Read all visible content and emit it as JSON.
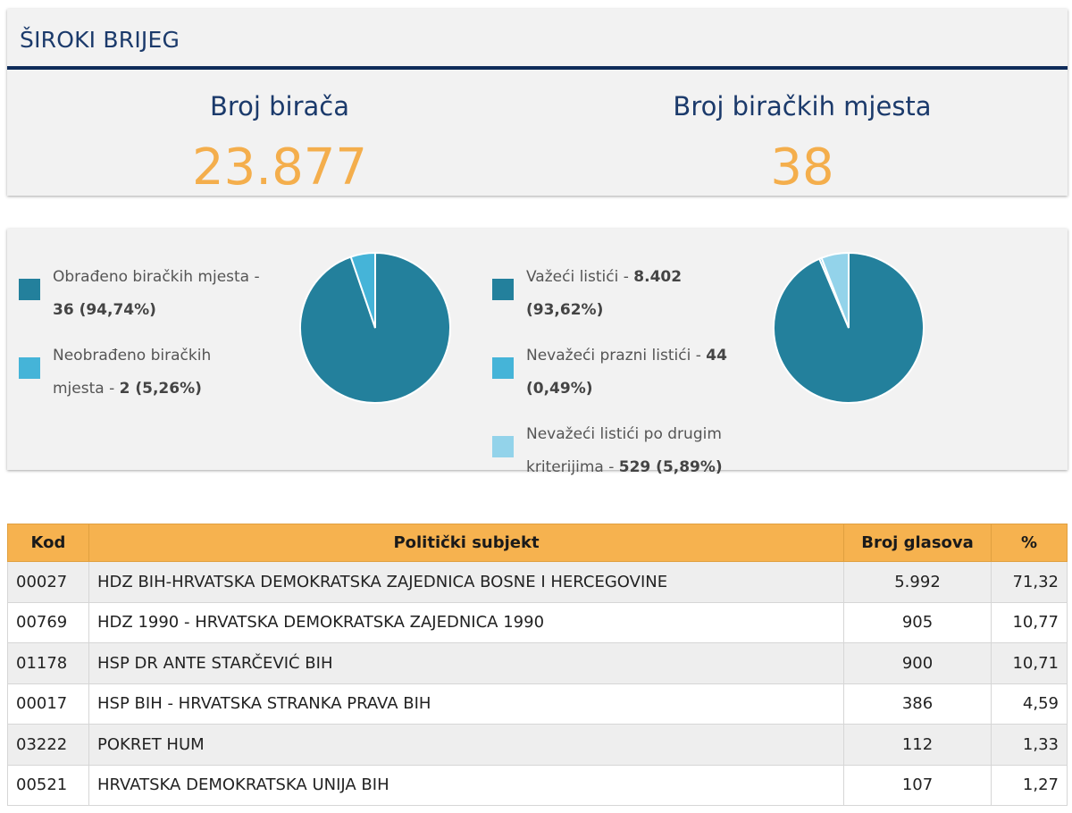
{
  "header": {
    "title": "ŠIROKI BRIJEG",
    "voters_label": "Broj birača",
    "voters_value": "23.877",
    "stations_label": "Broj biračkih mjesta",
    "stations_value": "38"
  },
  "colors": {
    "dark_slice": "#23809c",
    "mid_slice": "#45b4d8",
    "light_slice": "#93d3ea",
    "accent_orange": "#f6b24f",
    "navy": "#0f2c5a"
  },
  "pie_left": {
    "legend": [
      {
        "text": "Obrađeno biračkih mjesta - ",
        "value": "36 (94,74%)"
      },
      {
        "text": "Neobrađeno biračkih mjesta - ",
        "value": "2 (5,26%)"
      }
    ]
  },
  "pie_right": {
    "legend": [
      {
        "text": "Važeći listići - ",
        "value": "8.402 (93,62%)"
      },
      {
        "text": "Nevažeći prazni listići - ",
        "value": "44 (0,49%)"
      },
      {
        "text": "Nevažeći listići po drugim kriterijima - ",
        "value": "529 (5,89%)"
      }
    ]
  },
  "chart_data": [
    {
      "type": "pie",
      "categories": [
        "Obrađeno biračkih mjesta",
        "Neobrađeno biračkih mjesta"
      ],
      "values": [
        36,
        2
      ],
      "percent": [
        94.74,
        5.26
      ]
    },
    {
      "type": "pie",
      "categories": [
        "Važeći listići",
        "Nevažeći prazni listići",
        "Nevažeći listići po drugim kriterijima"
      ],
      "values": [
        8402,
        44,
        529
      ],
      "percent": [
        93.62,
        0.49,
        5.89
      ]
    },
    {
      "type": "table",
      "columns": [
        "Kod",
        "Politički subjekt",
        "Broj glasova",
        "%"
      ],
      "rows": [
        [
          "00027",
          "HDZ BIH-HRVATSKA DEMOKRATSKA ZAJEDNICA BOSNE I HERCEGOVINE",
          "5.992",
          "71,32"
        ],
        [
          "00769",
          "HDZ 1990 - HRVATSKA DEMOKRATSKA ZAJEDNICA 1990",
          "905",
          "10,77"
        ],
        [
          "01178",
          "HSP DR ANTE STARČEVIĆ BIH",
          "900",
          "10,71"
        ],
        [
          "00017",
          "HSP BIH - HRVATSKA STRANKA PRAVA BIH",
          "386",
          "4,59"
        ],
        [
          "03222",
          "POKRET HUM",
          "112",
          "1,33"
        ],
        [
          "00521",
          "HRVATSKA DEMOKRATSKA UNIJA BIH",
          "107",
          "1,27"
        ]
      ]
    }
  ]
}
